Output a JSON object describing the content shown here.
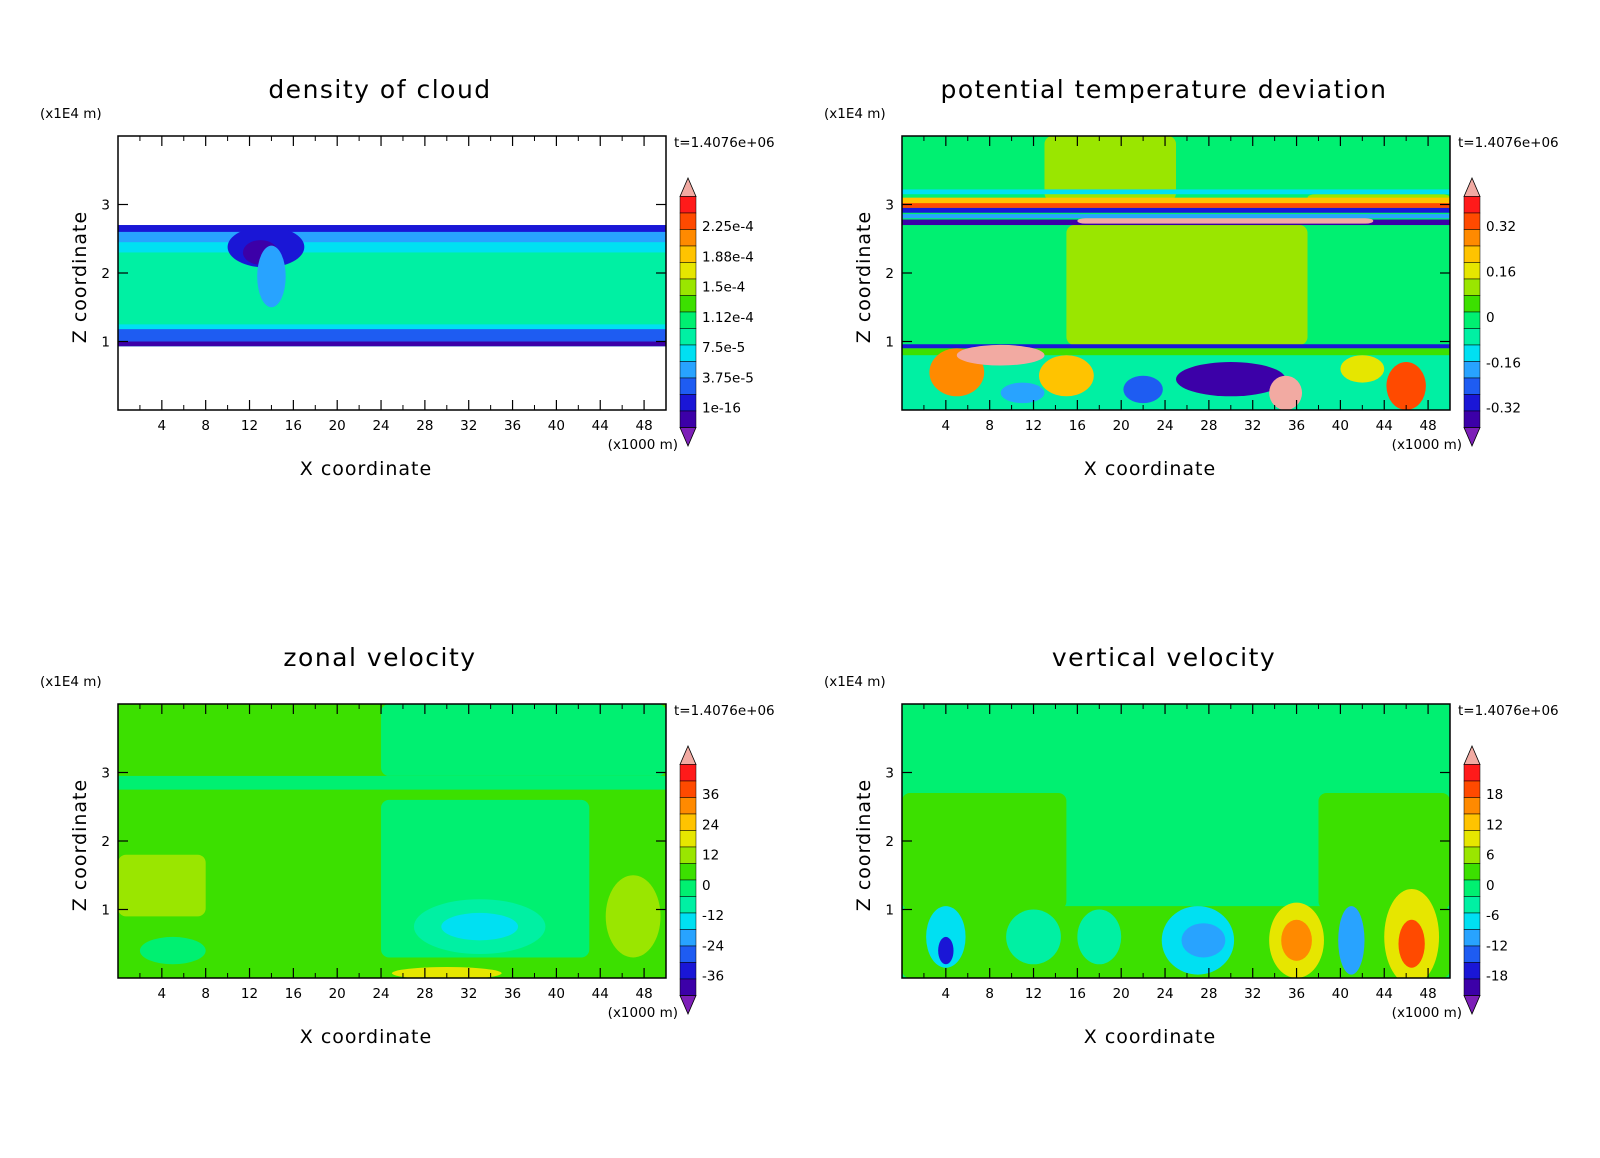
{
  "palette": [
    "#7d1fb8",
    "#3c00a8",
    "#1a16d6",
    "#1e5cf2",
    "#28a3ff",
    "#00e0f2",
    "#00f0a3",
    "#00f071",
    "#3ce000",
    "#9ae600",
    "#e6e600",
    "#ffc300",
    "#ff8a00",
    "#ff4a00",
    "#ff1a1a",
    "#f2aaa2"
  ],
  "chart_data": [
    {
      "type": "heatmap",
      "title": "density of cloud",
      "xlabel": "X coordinate",
      "ylabel": "Z coordinate",
      "x_unit": "(x1000 m)",
      "y_unit": "(x1E4 m)",
      "time_label": "t=1.4076e+06",
      "xticks": [
        "4",
        "8",
        "12",
        "16",
        "20",
        "24",
        "28",
        "32",
        "36",
        "40",
        "44",
        "48"
      ],
      "yticks": [
        "1",
        "2",
        "3"
      ],
      "xlim": [
        0,
        50
      ],
      "ylim": [
        0,
        4
      ],
      "colorbar_labels": [
        "2.25e-4",
        "1.88e-4",
        "1.5e-4",
        "1.12e-4",
        "7.5e-5",
        "3.75e-5",
        "1e-16"
      ],
      "features": [
        {
          "shape": "band",
          "y": [
            0.93,
            2.7
          ],
          "level": 6
        },
        {
          "shape": "band",
          "y": [
            0.93,
            1.25
          ],
          "level": 5
        },
        {
          "shape": "band",
          "y": [
            1.0,
            1.18
          ],
          "level": 3
        },
        {
          "shape": "band",
          "y": [
            0.93,
            1.0
          ],
          "level": 1
        },
        {
          "shape": "band",
          "y": [
            2.3,
            2.55
          ],
          "level": 5
        },
        {
          "shape": "band",
          "y": [
            2.45,
            2.7
          ],
          "level": 4
        },
        {
          "shape": "band",
          "y": [
            2.6,
            2.7
          ],
          "level": 2
        },
        {
          "shape": "blob",
          "x": 13.5,
          "y": 2.38,
          "rx": 3.5,
          "ry": 0.3,
          "level": 2
        },
        {
          "shape": "blob",
          "x": 13.0,
          "y": 2.3,
          "rx": 1.6,
          "ry": 0.18,
          "level": 1
        },
        {
          "shape": "blob",
          "x": 14.0,
          "y": 1.95,
          "rx": 1.3,
          "ry": 0.45,
          "level": 4
        }
      ]
    },
    {
      "type": "heatmap",
      "title": "potential temperature deviation",
      "xlabel": "X coordinate",
      "ylabel": "Z coordinate",
      "x_unit": "(x1000 m)",
      "y_unit": "(x1E4 m)",
      "time_label": "t=1.4076e+06",
      "xticks": [
        "4",
        "8",
        "12",
        "16",
        "20",
        "24",
        "28",
        "32",
        "36",
        "40",
        "44",
        "48"
      ],
      "yticks": [
        "1",
        "2",
        "3"
      ],
      "xlim": [
        0,
        50
      ],
      "ylim": [
        0,
        4
      ],
      "colorbar_labels": [
        "0.32",
        "0.16",
        "0",
        "-0.16",
        "-0.32"
      ],
      "features": [
        {
          "shape": "band",
          "y": [
            0,
            4
          ],
          "level": 7
        },
        {
          "shape": "rect",
          "x": [
            15,
            37
          ],
          "y": [
            0.95,
            2.7
          ],
          "level": 9
        },
        {
          "shape": "rect",
          "x": [
            13,
            25
          ],
          "y": [
            3.05,
            4.0
          ],
          "level": 9
        },
        {
          "shape": "rect",
          "x": [
            37,
            50
          ],
          "y": [
            3.05,
            3.15
          ],
          "level": 9
        },
        {
          "shape": "band",
          "y": [
            3.15,
            3.22
          ],
          "level": 5
        },
        {
          "shape": "band",
          "y": [
            3.0,
            3.1
          ],
          "level": 11
        },
        {
          "shape": "band",
          "y": [
            2.95,
            3.02
          ],
          "level": 13
        },
        {
          "shape": "band",
          "y": [
            2.88,
            2.95
          ],
          "level": 2
        },
        {
          "shape": "band",
          "y": [
            2.8,
            2.86
          ],
          "level": 4
        },
        {
          "shape": "band",
          "y": [
            2.7,
            2.78
          ],
          "level": 1
        },
        {
          "shape": "rect",
          "x": [
            16,
            43
          ],
          "y": [
            2.72,
            2.8
          ],
          "level": 15
        },
        {
          "shape": "band",
          "y": [
            0.0,
            0.93
          ],
          "level": 6
        },
        {
          "shape": "band",
          "y": [
            0.9,
            0.96
          ],
          "level": 2
        },
        {
          "shape": "band",
          "y": [
            0.8,
            0.9
          ],
          "level": 8
        },
        {
          "shape": "blob",
          "x": 5,
          "y": 0.55,
          "rx": 2.5,
          "ry": 0.35,
          "level": 12
        },
        {
          "shape": "blob",
          "x": 9,
          "y": 0.8,
          "rx": 4,
          "ry": 0.15,
          "level": 15
        },
        {
          "shape": "blob",
          "x": 15,
          "y": 0.5,
          "rx": 2.5,
          "ry": 0.3,
          "level": 11
        },
        {
          "shape": "blob",
          "x": 11,
          "y": 0.25,
          "rx": 2,
          "ry": 0.15,
          "level": 4
        },
        {
          "shape": "blob",
          "x": 30,
          "y": 0.45,
          "rx": 5,
          "ry": 0.25,
          "level": 1
        },
        {
          "shape": "blob",
          "x": 35,
          "y": 0.25,
          "rx": 1.5,
          "ry": 0.25,
          "level": 15
        },
        {
          "shape": "blob",
          "x": 46,
          "y": 0.35,
          "rx": 1.8,
          "ry": 0.35,
          "level": 13
        },
        {
          "shape": "blob",
          "x": 42,
          "y": 0.6,
          "rx": 2,
          "ry": 0.2,
          "level": 10
        },
        {
          "shape": "blob",
          "x": 22,
          "y": 0.3,
          "rx": 1.8,
          "ry": 0.2,
          "level": 3
        }
      ]
    },
    {
      "type": "heatmap",
      "title": "zonal velocity",
      "xlabel": "X coordinate",
      "ylabel": "Z coordinate",
      "x_unit": "(x1000 m)",
      "y_unit": "(x1E4 m)",
      "time_label": "t=1.4076e+06",
      "xticks": [
        "4",
        "8",
        "12",
        "16",
        "20",
        "24",
        "28",
        "32",
        "36",
        "40",
        "44",
        "48"
      ],
      "yticks": [
        "1",
        "2",
        "3"
      ],
      "xlim": [
        0,
        50
      ],
      "ylim": [
        0,
        4
      ],
      "colorbar_labels": [
        "36",
        "24",
        "12",
        "0",
        "-12",
        "-24",
        "-36"
      ],
      "features": [
        {
          "shape": "band",
          "y": [
            0,
            4
          ],
          "level": 8
        },
        {
          "shape": "rect",
          "x": [
            24,
            43
          ],
          "y": [
            0.3,
            2.6
          ],
          "level": 7
        },
        {
          "shape": "rect",
          "x": [
            24,
            50
          ],
          "y": [
            2.95,
            4.0
          ],
          "level": 7
        },
        {
          "shape": "band",
          "y": [
            2.75,
            2.95
          ],
          "level": 7
        },
        {
          "shape": "rect",
          "x": [
            0,
            8
          ],
          "y": [
            0.9,
            1.8
          ],
          "level": 9
        },
        {
          "shape": "blob",
          "x": 33,
          "y": 0.75,
          "rx": 6,
          "ry": 0.4,
          "level": 6
        },
        {
          "shape": "blob",
          "x": 33,
          "y": 0.75,
          "rx": 3.5,
          "ry": 0.2,
          "level": 5
        },
        {
          "shape": "blob",
          "x": 30,
          "y": 0.07,
          "rx": 5,
          "ry": 0.09,
          "level": 10
        },
        {
          "shape": "blob",
          "x": 47,
          "y": 0.9,
          "rx": 2.5,
          "ry": 0.6,
          "level": 9
        },
        {
          "shape": "blob",
          "x": 5,
          "y": 0.4,
          "rx": 3,
          "ry": 0.2,
          "level": 7
        }
      ]
    },
    {
      "type": "heatmap",
      "title": "vertical velocity",
      "xlabel": "X coordinate",
      "ylabel": "Z coordinate",
      "x_unit": "(x1000 m)",
      "y_unit": "(x1E4 m)",
      "time_label": "t=1.4076e+06",
      "xticks": [
        "4",
        "8",
        "12",
        "16",
        "20",
        "24",
        "28",
        "32",
        "36",
        "40",
        "44",
        "48"
      ],
      "yticks": [
        "1",
        "2",
        "3"
      ],
      "xlim": [
        0,
        50
      ],
      "ylim": [
        0,
        4
      ],
      "colorbar_labels": [
        "18",
        "12",
        "6",
        "0",
        "-6",
        "-12",
        "-18"
      ],
      "features": [
        {
          "shape": "band",
          "y": [
            0,
            4
          ],
          "level": 7
        },
        {
          "shape": "rect",
          "x": [
            0,
            15
          ],
          "y": [
            1.0,
            2.7
          ],
          "level": 8
        },
        {
          "shape": "rect",
          "x": [
            38,
            50
          ],
          "y": [
            1.0,
            2.7
          ],
          "level": 8
        },
        {
          "shape": "rect",
          "x": [
            0,
            50
          ],
          "y": [
            0.0,
            1.05
          ],
          "level": 8
        },
        {
          "shape": "blob",
          "x": 4,
          "y": 0.6,
          "rx": 1.8,
          "ry": 0.45,
          "level": 5
        },
        {
          "shape": "blob",
          "x": 4,
          "y": 0.4,
          "rx": 0.7,
          "ry": 0.2,
          "level": 2
        },
        {
          "shape": "blob",
          "x": 12,
          "y": 0.6,
          "rx": 2.5,
          "ry": 0.4,
          "level": 6
        },
        {
          "shape": "blob",
          "x": 27,
          "y": 0.55,
          "rx": 3.3,
          "ry": 0.5,
          "level": 5
        },
        {
          "shape": "blob",
          "x": 27.5,
          "y": 0.55,
          "rx": 2.0,
          "ry": 0.25,
          "level": 4
        },
        {
          "shape": "blob",
          "x": 36,
          "y": 0.55,
          "rx": 2.5,
          "ry": 0.55,
          "level": 10
        },
        {
          "shape": "blob",
          "x": 36,
          "y": 0.55,
          "rx": 1.4,
          "ry": 0.3,
          "level": 12
        },
        {
          "shape": "blob",
          "x": 41,
          "y": 0.55,
          "rx": 1.2,
          "ry": 0.5,
          "level": 4
        },
        {
          "shape": "blob",
          "x": 46.5,
          "y": 0.6,
          "rx": 2.5,
          "ry": 0.7,
          "level": 10
        },
        {
          "shape": "blob",
          "x": 46.5,
          "y": 0.5,
          "rx": 1.2,
          "ry": 0.35,
          "level": 13
        },
        {
          "shape": "blob",
          "x": 18,
          "y": 0.6,
          "rx": 2,
          "ry": 0.4,
          "level": 6
        }
      ]
    }
  ]
}
